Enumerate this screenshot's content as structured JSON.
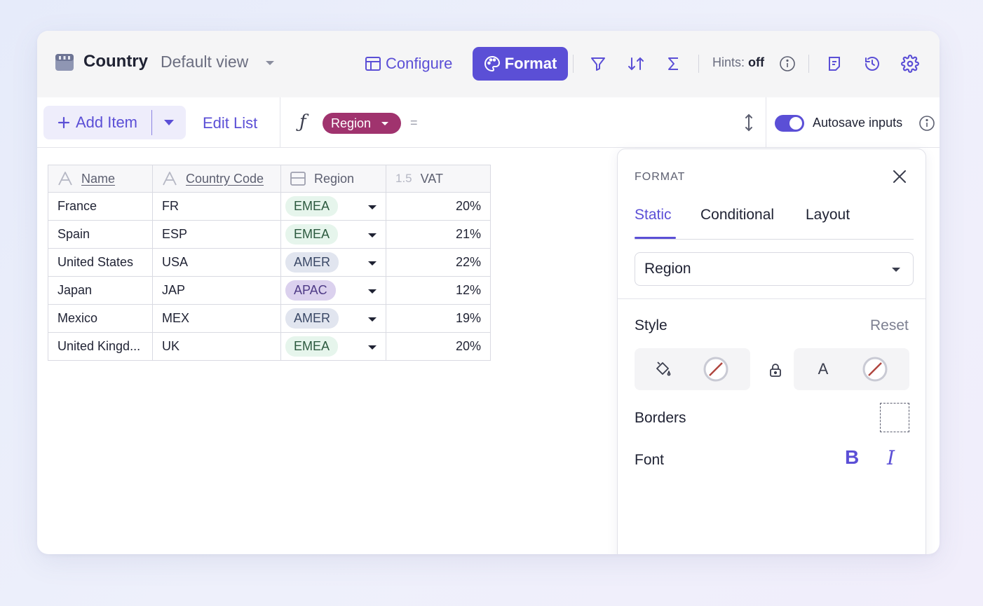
{
  "header": {
    "title": "Country",
    "view_name": "Default view",
    "configure_label": "Configure",
    "format_label": "Format",
    "hints_label": "Hints:",
    "hints_value": "off",
    "accent_color": "#5b4fd6"
  },
  "toolbar": {
    "add_item_label": "Add Item",
    "edit_list_label": "Edit List",
    "formula_icon": "ƒ",
    "formula_field": "Region",
    "formula_equals": "=",
    "autosave_label": "Autosave inputs",
    "autosave_on": true
  },
  "table": {
    "columns": [
      {
        "label": "Name",
        "type_icon": "text-icon"
      },
      {
        "label": "Country Code",
        "type_icon": "text-icon"
      },
      {
        "label": "Region",
        "type_icon": "select-icon"
      },
      {
        "label": "VAT",
        "type_icon": "number-icon",
        "type_text": "1.5"
      }
    ],
    "rows": [
      {
        "name": "France",
        "code": "FR",
        "region": "EMEA",
        "vat": "20%"
      },
      {
        "name": "Spain",
        "code": "ESP",
        "region": "EMEA",
        "vat": "21%"
      },
      {
        "name": "United States",
        "code": "USA",
        "region": "AMER",
        "vat": "22%"
      },
      {
        "name": "Japan",
        "code": "JAP",
        "region": "APAC",
        "vat": "12%"
      },
      {
        "name": "Mexico",
        "code": "MEX",
        "region": "AMER",
        "vat": "19%"
      },
      {
        "name": "United Kingd...",
        "code": "UK",
        "region": "EMEA",
        "vat": "20%"
      }
    ],
    "region_colors": {
      "EMEA": "#e6f5ec",
      "AMER": "#e1e5ef",
      "APAC": "#dbd1ee"
    }
  },
  "format_panel": {
    "title": "FORMAT",
    "tabs": [
      "Static",
      "Conditional",
      "Layout"
    ],
    "active_tab": "Static",
    "selected_column": "Region",
    "style_label": "Style",
    "reset_label": "Reset",
    "borders_label": "Borders",
    "font_label": "Font",
    "font_bold_glyph": "B",
    "font_italic_glyph": "I",
    "text_color_glyph": "A"
  }
}
